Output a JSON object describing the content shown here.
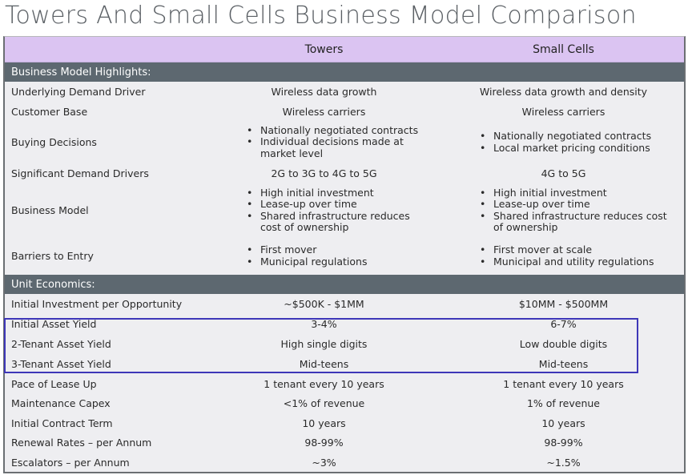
{
  "title": "Towers And Small Cells Business Model Comparison",
  "header": {
    "col1": "",
    "col2": "Towers",
    "col3": "Small Cells"
  },
  "sections": [
    {
      "label": "Business Model Highlights:",
      "rows": [
        {
          "label": "Underlying Demand Driver",
          "towers": "Wireless data growth",
          "small_cells": "Wireless data growth and density"
        },
        {
          "label": "Customer Base",
          "towers": "Wireless carriers",
          "small_cells": "Wireless carriers"
        },
        {
          "label": "Buying Decisions",
          "towers_list": [
            "Nationally negotiated contracts",
            "Individual decisions made at market level"
          ],
          "small_cells_list": [
            "Nationally negotiated contracts",
            "Local market pricing conditions"
          ]
        },
        {
          "label": "Significant Demand Drivers",
          "towers": "2G to 3G to 4G to 5G",
          "small_cells": "4G to 5G"
        },
        {
          "label": "Business Model",
          "towers_list": [
            "High initial investment",
            "Lease-up over time",
            "Shared infrastructure reduces cost of ownership"
          ],
          "small_cells_list": [
            "High initial investment",
            "Lease-up over time",
            "Shared infrastructure reduces cost of ownership"
          ]
        },
        {
          "label": "Barriers to Entry",
          "towers_list": [
            "First mover",
            "Municipal regulations"
          ],
          "small_cells_list": [
            "First mover at scale",
            "Municipal and utility regulations"
          ]
        }
      ]
    },
    {
      "label": "Unit Economics:",
      "rows": [
        {
          "label": "Initial Investment per Opportunity",
          "towers": "~$500K - $1MM",
          "small_cells": "$10MM - $500MM"
        },
        {
          "label": "Initial Asset Yield",
          "towers": "3-4%",
          "small_cells": "6-7%"
        },
        {
          "label": "2-Tenant Asset Yield",
          "towers": "High single digits",
          "small_cells": "Low double digits"
        },
        {
          "label": "3-Tenant Asset Yield",
          "towers": "Mid-teens",
          "small_cells": "Mid-teens"
        },
        {
          "label": "Pace of Lease Up",
          "towers": "1 tenant every 10 years",
          "small_cells": "1 tenant every 10 years"
        },
        {
          "label": "Maintenance Capex",
          "towers": "<1% of revenue",
          "small_cells": "1% of revenue"
        },
        {
          "label": "Initial Contract Term",
          "towers": "10 years",
          "small_cells": "10 years"
        },
        {
          "label": "Renewal Rates – per Annum",
          "towers": "98-99%",
          "small_cells": "98-99%"
        },
        {
          "label": "Escalators – per Annum",
          "towers": "~3%",
          "small_cells": "~1.5%"
        }
      ]
    }
  ],
  "colors": {
    "header_bg": "#dbc4f2",
    "section_bg": "#5d6870",
    "table_bg": "#eeeef1",
    "highlight_border": "#3e37b8"
  }
}
